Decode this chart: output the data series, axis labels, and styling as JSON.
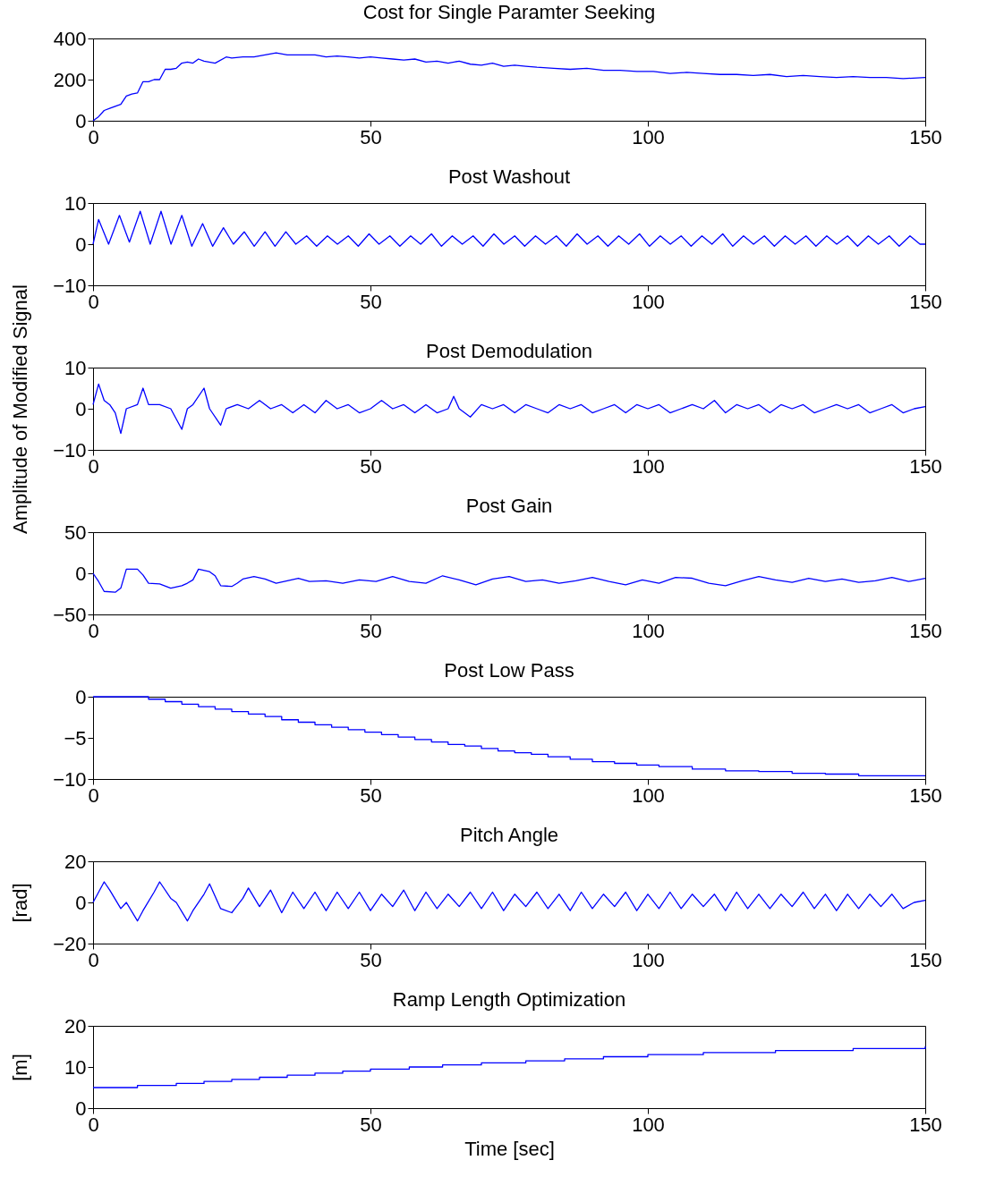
{
  "chart_data": [
    {
      "type": "line",
      "title": "Cost for Single Paramter Seeking",
      "xlim": [
        0,
        150
      ],
      "xticks": [
        0,
        50,
        100,
        150
      ],
      "ylim": [
        0,
        400
      ],
      "yticks": [
        0,
        200,
        400
      ],
      "grid": false,
      "x": [
        0,
        1,
        2,
        3,
        4,
        5,
        6,
        7,
        8,
        9,
        10,
        11,
        12,
        13,
        14,
        15,
        16,
        17,
        18,
        19,
        20,
        22,
        24,
        25,
        27,
        29,
        31,
        33,
        35,
        37,
        40,
        42,
        44,
        46,
        48,
        50,
        52,
        54,
        56,
        58,
        60,
        62,
        64,
        66,
        68,
        70,
        72,
        74,
        76,
        78,
        80,
        83,
        86,
        89,
        92,
        95,
        98,
        101,
        104,
        107,
        110,
        113,
        116,
        119,
        122,
        125,
        128,
        131,
        134,
        137,
        140,
        143,
        146,
        150
      ],
      "series": [
        {
          "color": "#0000ff",
          "values": [
            0,
            20,
            50,
            60,
            70,
            80,
            120,
            130,
            135,
            190,
            190,
            200,
            200,
            250,
            250,
            255,
            280,
            285,
            280,
            300,
            290,
            280,
            310,
            305,
            310,
            310,
            320,
            330,
            320,
            320,
            320,
            310,
            315,
            310,
            305,
            310,
            305,
            300,
            295,
            300,
            285,
            290,
            280,
            290,
            275,
            270,
            280,
            265,
            270,
            265,
            260,
            255,
            250,
            255,
            245,
            245,
            240,
            240,
            230,
            235,
            230,
            225,
            225,
            220,
            225,
            215,
            220,
            215,
            210,
            215,
            210,
            210,
            205,
            210
          ]
        }
      ]
    },
    {
      "type": "line",
      "title": "Post Washout",
      "xlim": [
        0,
        150
      ],
      "xticks": [
        0,
        50,
        100,
        150
      ],
      "ylim": [
        -10,
        10
      ],
      "yticks": [
        -10,
        0,
        10
      ],
      "grid": false,
      "x": [
        0,
        1,
        2.8,
        4.75,
        6.55,
        8.5,
        10.3,
        12.25,
        14.05,
        16,
        17.8,
        19.75,
        21.55,
        23.5,
        25.3,
        27.25,
        29.05,
        31,
        32.8,
        34.75,
        36.55,
        38.5,
        40.3,
        42.25,
        44.05,
        46,
        47.8,
        49.75,
        51.55,
        53.5,
        55.3,
        57.25,
        59.05,
        61,
        62.8,
        64.75,
        66.55,
        68.5,
        70.3,
        72.25,
        74.05,
        76,
        77.8,
        79.75,
        81.55,
        83.5,
        85.3,
        87.25,
        89.05,
        91,
        92.8,
        94.75,
        96.55,
        98.5,
        100.3,
        102.25,
        104.05,
        106,
        107.8,
        109.75,
        111.55,
        113.5,
        115.3,
        117.25,
        119.05,
        121,
        122.8,
        124.75,
        126.55,
        128.5,
        130.3,
        132.25,
        134.05,
        136,
        137.8,
        139.75,
        141.55,
        143.5,
        145.3,
        147.25,
        149.05,
        150
      ],
      "series": [
        {
          "color": "#0000ff",
          "values": [
            0,
            6,
            0,
            7,
            0.5,
            8,
            0,
            8,
            0,
            7,
            -0.5,
            5,
            -0.5,
            4,
            0,
            3,
            -0.5,
            3,
            -0.5,
            3,
            0,
            2,
            -0.5,
            2,
            0,
            2,
            -0.5,
            2.5,
            0,
            2,
            -0.5,
            2,
            0,
            2.5,
            -0.5,
            2,
            0,
            2,
            -0.5,
            2.5,
            0,
            2,
            -0.5,
            2,
            0,
            2,
            -0.5,
            2.5,
            0,
            2,
            -0.5,
            2,
            0,
            2.5,
            -0.5,
            2,
            0,
            2,
            -0.5,
            2,
            0,
            2.5,
            -0.5,
            2,
            0,
            2,
            -0.5,
            2,
            0,
            2,
            -0.5,
            2,
            0,
            2,
            -0.5,
            2,
            0,
            2,
            -0.5,
            2,
            0,
            0
          ]
        }
      ]
    },
    {
      "type": "line",
      "title": "Post Demodulation",
      "ylabel": "Amplitude of Modified Signal",
      "xlim": [
        0,
        150
      ],
      "xticks": [
        0,
        50,
        100,
        150
      ],
      "ylim": [
        -10,
        10
      ],
      "yticks": [
        -10,
        0,
        10
      ],
      "grid": false,
      "x": [
        0,
        1,
        2,
        3,
        4,
        5,
        6,
        8,
        9,
        10,
        12,
        14,
        16,
        17,
        18,
        20,
        21,
        23,
        24,
        26,
        28,
        30,
        32,
        34,
        36,
        38,
        40,
        42,
        44,
        46,
        48,
        50,
        52,
        54,
        56,
        58,
        60,
        62,
        64,
        65,
        66,
        68,
        70,
        72,
        74,
        76,
        78,
        80,
        82,
        84,
        86,
        88,
        90,
        92,
        94,
        96,
        98,
        100,
        102,
        104,
        106,
        108,
        110,
        112,
        114,
        116,
        118,
        120,
        122,
        124,
        126,
        128,
        130,
        132,
        134,
        136,
        138,
        140,
        142,
        144,
        146,
        148,
        150
      ],
      "series": [
        {
          "color": "#0000ff",
          "values": [
            1,
            6,
            2,
            1,
            -1,
            -6,
            0,
            1,
            5,
            1,
            1,
            0,
            -5,
            0,
            1,
            5,
            0,
            -4,
            0,
            1,
            0,
            2,
            0,
            1,
            -1,
            1,
            -1,
            2,
            0,
            1,
            -1,
            0,
            2,
            0,
            1,
            -1,
            1,
            -1,
            0,
            3,
            0,
            -2,
            1,
            0,
            1,
            -1,
            1,
            0,
            -1,
            1,
            0,
            1,
            -1,
            0,
            1,
            -1,
            1,
            0,
            1,
            -1,
            0,
            1,
            0,
            2,
            -1,
            1,
            0,
            1,
            -1,
            1,
            0,
            1,
            -1,
            0,
            1,
            0,
            1,
            -1,
            0,
            1,
            -1,
            0,
            0.5
          ]
        }
      ]
    },
    {
      "type": "line",
      "title": "Post Gain",
      "xlim": [
        0,
        150
      ],
      "xticks": [
        0,
        50,
        100,
        150
      ],
      "ylim": [
        -50,
        50
      ],
      "yticks": [
        -50,
        0,
        50
      ],
      "grid": false,
      "x": [
        0,
        1,
        2,
        4,
        5,
        6,
        8,
        9,
        10,
        12,
        14,
        16,
        17,
        18,
        19,
        21,
        22,
        23,
        25,
        26,
        27,
        29,
        31,
        33,
        35,
        37,
        39,
        42,
        45,
        48,
        51,
        54,
        57,
        60,
        63,
        66,
        69,
        72,
        75,
        78,
        81,
        84,
        87,
        90,
        93,
        96,
        99,
        102,
        105,
        108,
        111,
        114,
        117,
        120,
        123,
        126,
        129,
        132,
        135,
        138,
        141,
        144,
        147,
        150
      ],
      "series": [
        {
          "color": "#0000ff",
          "values": [
            0,
            -10,
            -22,
            -23,
            -18,
            5,
            5,
            -2,
            -12,
            -13,
            -18,
            -15,
            -12,
            -8,
            5,
            2,
            -3,
            -15,
            -16,
            -12,
            -7,
            -4,
            -7,
            -12,
            -9,
            -6,
            -10,
            -9,
            -12,
            -8,
            -10,
            -4,
            -10,
            -12,
            -3,
            -8,
            -14,
            -7,
            -4,
            -10,
            -8,
            -12,
            -9,
            -5,
            -10,
            -14,
            -8,
            -12,
            -5,
            -6,
            -12,
            -15,
            -9,
            -4,
            -8,
            -11,
            -6,
            -10,
            -7,
            -11,
            -9,
            -5,
            -10,
            -6
          ]
        }
      ]
    },
    {
      "type": "step",
      "title": "Post Low Pass",
      "xlim": [
        0,
        150
      ],
      "xticks": [
        0,
        50,
        100,
        150
      ],
      "ylim": [
        -10,
        0
      ],
      "yticks": [
        -10,
        -5,
        0
      ],
      "grid": false,
      "x": [
        0,
        7,
        10,
        13,
        16,
        19,
        22,
        25,
        28,
        31,
        34,
        37,
        40,
        43,
        46,
        49,
        52,
        55,
        58,
        61,
        64,
        67,
        70,
        73,
        76,
        79,
        82,
        86,
        90,
        94,
        98,
        102,
        108,
        114,
        120,
        126,
        132,
        138,
        144,
        150
      ],
      "series": [
        {
          "color": "#0000ff",
          "values": [
            0,
            0,
            -0.3,
            -0.6,
            -0.9,
            -1.2,
            -1.5,
            -1.8,
            -2.1,
            -2.4,
            -2.8,
            -3.1,
            -3.4,
            -3.7,
            -4.0,
            -4.3,
            -4.6,
            -4.9,
            -5.2,
            -5.5,
            -5.8,
            -6.0,
            -6.3,
            -6.6,
            -6.8,
            -7.0,
            -7.3,
            -7.6,
            -7.9,
            -8.1,
            -8.3,
            -8.5,
            -8.8,
            -9.0,
            -9.1,
            -9.3,
            -9.4,
            -9.6,
            -9.6,
            -9.6
          ]
        }
      ]
    },
    {
      "type": "line",
      "title": "Pitch Angle",
      "ylabel": "[rad]",
      "xlim": [
        0,
        150
      ],
      "xticks": [
        0,
        50,
        100,
        150
      ],
      "ylim": [
        -20,
        20
      ],
      "yticks": [
        -20,
        0,
        20
      ],
      "grid": false,
      "x": [
        0,
        1,
        2,
        3,
        5,
        6,
        8,
        9,
        11,
        12,
        14,
        15,
        17,
        18,
        20,
        21,
        23,
        25,
        27,
        28,
        30,
        32,
        34,
        36,
        38,
        40,
        42,
        44,
        46,
        48,
        50,
        52,
        54,
        56,
        58,
        60,
        62,
        64,
        66,
        68,
        70,
        72,
        74,
        76,
        78,
        80,
        82,
        84,
        86,
        88,
        90,
        92,
        94,
        96,
        98,
        100,
        102,
        104,
        106,
        108,
        110,
        112,
        114,
        116,
        118,
        120,
        122,
        124,
        126,
        128,
        130,
        132,
        134,
        136,
        138,
        140,
        142,
        144,
        146,
        148,
        150
      ],
      "series": [
        {
          "color": "#0000ff",
          "values": [
            0,
            5,
            10,
            6,
            -3,
            0,
            -9,
            -4,
            5,
            10,
            2,
            0,
            -9,
            -4,
            4,
            9,
            -3,
            -5,
            2,
            7,
            -2,
            6,
            -5,
            5,
            -3,
            5,
            -4,
            5,
            -3,
            5,
            -4,
            4,
            -2,
            6,
            -4,
            5,
            -3,
            4,
            -2,
            5,
            -3,
            5,
            -4,
            4,
            -2,
            5,
            -3,
            4,
            -4,
            5,
            -3,
            4,
            -2,
            5,
            -4,
            4,
            -3,
            5,
            -3,
            4,
            -2,
            4,
            -4,
            5,
            -3,
            4,
            -3,
            4,
            -2,
            5,
            -3,
            4,
            -4,
            4,
            -3,
            4,
            -2,
            4,
            -3,
            0,
            1
          ]
        }
      ]
    },
    {
      "type": "step",
      "title": "Ramp Length Optimization",
      "xlabel": "Time [sec]",
      "ylabel": "[m]",
      "xlim": [
        0,
        150
      ],
      "xticks": [
        0,
        50,
        100,
        150
      ],
      "ylim": [
        0,
        20
      ],
      "yticks": [
        0,
        10,
        20
      ],
      "grid": false,
      "x": [
        0,
        8,
        15,
        20,
        25,
        30,
        35,
        40,
        45,
        50,
        57,
        63,
        70,
        78,
        85,
        92,
        100,
        110,
        123,
        137,
        150
      ],
      "series": [
        {
          "color": "#0000ff",
          "values": [
            5,
            5.5,
            6,
            6.5,
            7,
            7.5,
            8,
            8.5,
            9,
            9.5,
            10,
            10.5,
            11,
            11.5,
            12,
            12.5,
            13,
            13.5,
            14,
            14.5,
            15
          ]
        }
      ]
    }
  ]
}
